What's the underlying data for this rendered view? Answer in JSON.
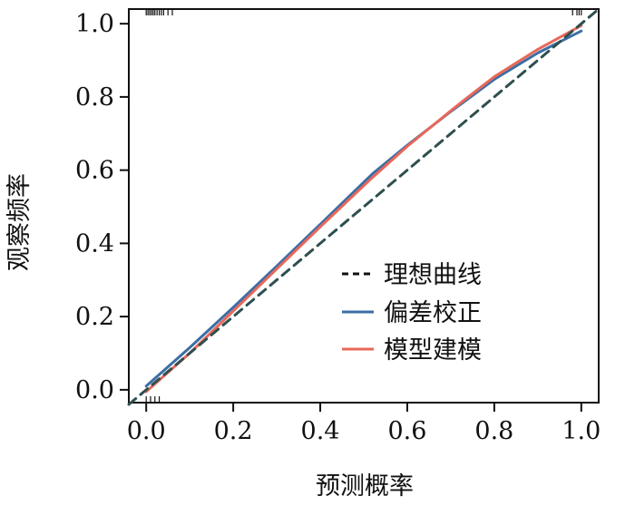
{
  "chart_data": {
    "type": "line",
    "xlabel": "预测概率",
    "ylabel": "观察频率",
    "xlim": [
      -0.04,
      1.04
    ],
    "ylim": [
      -0.035,
      1.04
    ],
    "x_ticks": [
      "0.0",
      "0.2",
      "0.4",
      "0.6",
      "0.8",
      "1.0"
    ],
    "y_ticks": [
      "0.0",
      "0.2",
      "0.4",
      "0.6",
      "0.8",
      "1.0"
    ],
    "grid": false,
    "legend_position": "bottom-right",
    "series": [
      {
        "name": "理想曲线",
        "color": "#2f4f4f",
        "style": "dashed",
        "x": [
          -0.04,
          1.04
        ],
        "y": [
          -0.04,
          1.04
        ]
      },
      {
        "name": "偏差校正",
        "color": "#3b6ea5",
        "style": "solid",
        "x": [
          0.0,
          0.1,
          0.2,
          0.3,
          0.4,
          0.52,
          0.6,
          0.7,
          0.74,
          0.8,
          0.9,
          1.0
        ],
        "y": [
          0.01,
          0.115,
          0.225,
          0.338,
          0.452,
          0.59,
          0.668,
          0.76,
          0.795,
          0.848,
          0.92,
          0.98
        ]
      },
      {
        "name": "模型建模",
        "color": "#e8685a",
        "style": "solid",
        "x": [
          0.0,
          0.1,
          0.2,
          0.3,
          0.4,
          0.52,
          0.6,
          0.7,
          0.74,
          0.8,
          0.9,
          1.0
        ],
        "y": [
          -0.005,
          0.1,
          0.215,
          0.33,
          0.445,
          0.58,
          0.665,
          0.762,
          0.8,
          0.855,
          0.93,
          0.995
        ]
      }
    ],
    "rug_top": [
      0.0,
      0.004,
      0.008,
      0.012,
      0.016,
      0.02,
      0.025,
      0.03,
      0.035,
      0.04,
      0.05,
      0.06,
      0.98,
      0.99,
      0.995,
      1.0
    ],
    "rug_bottom": [
      0.0,
      0.01,
      0.02,
      0.03
    ]
  }
}
